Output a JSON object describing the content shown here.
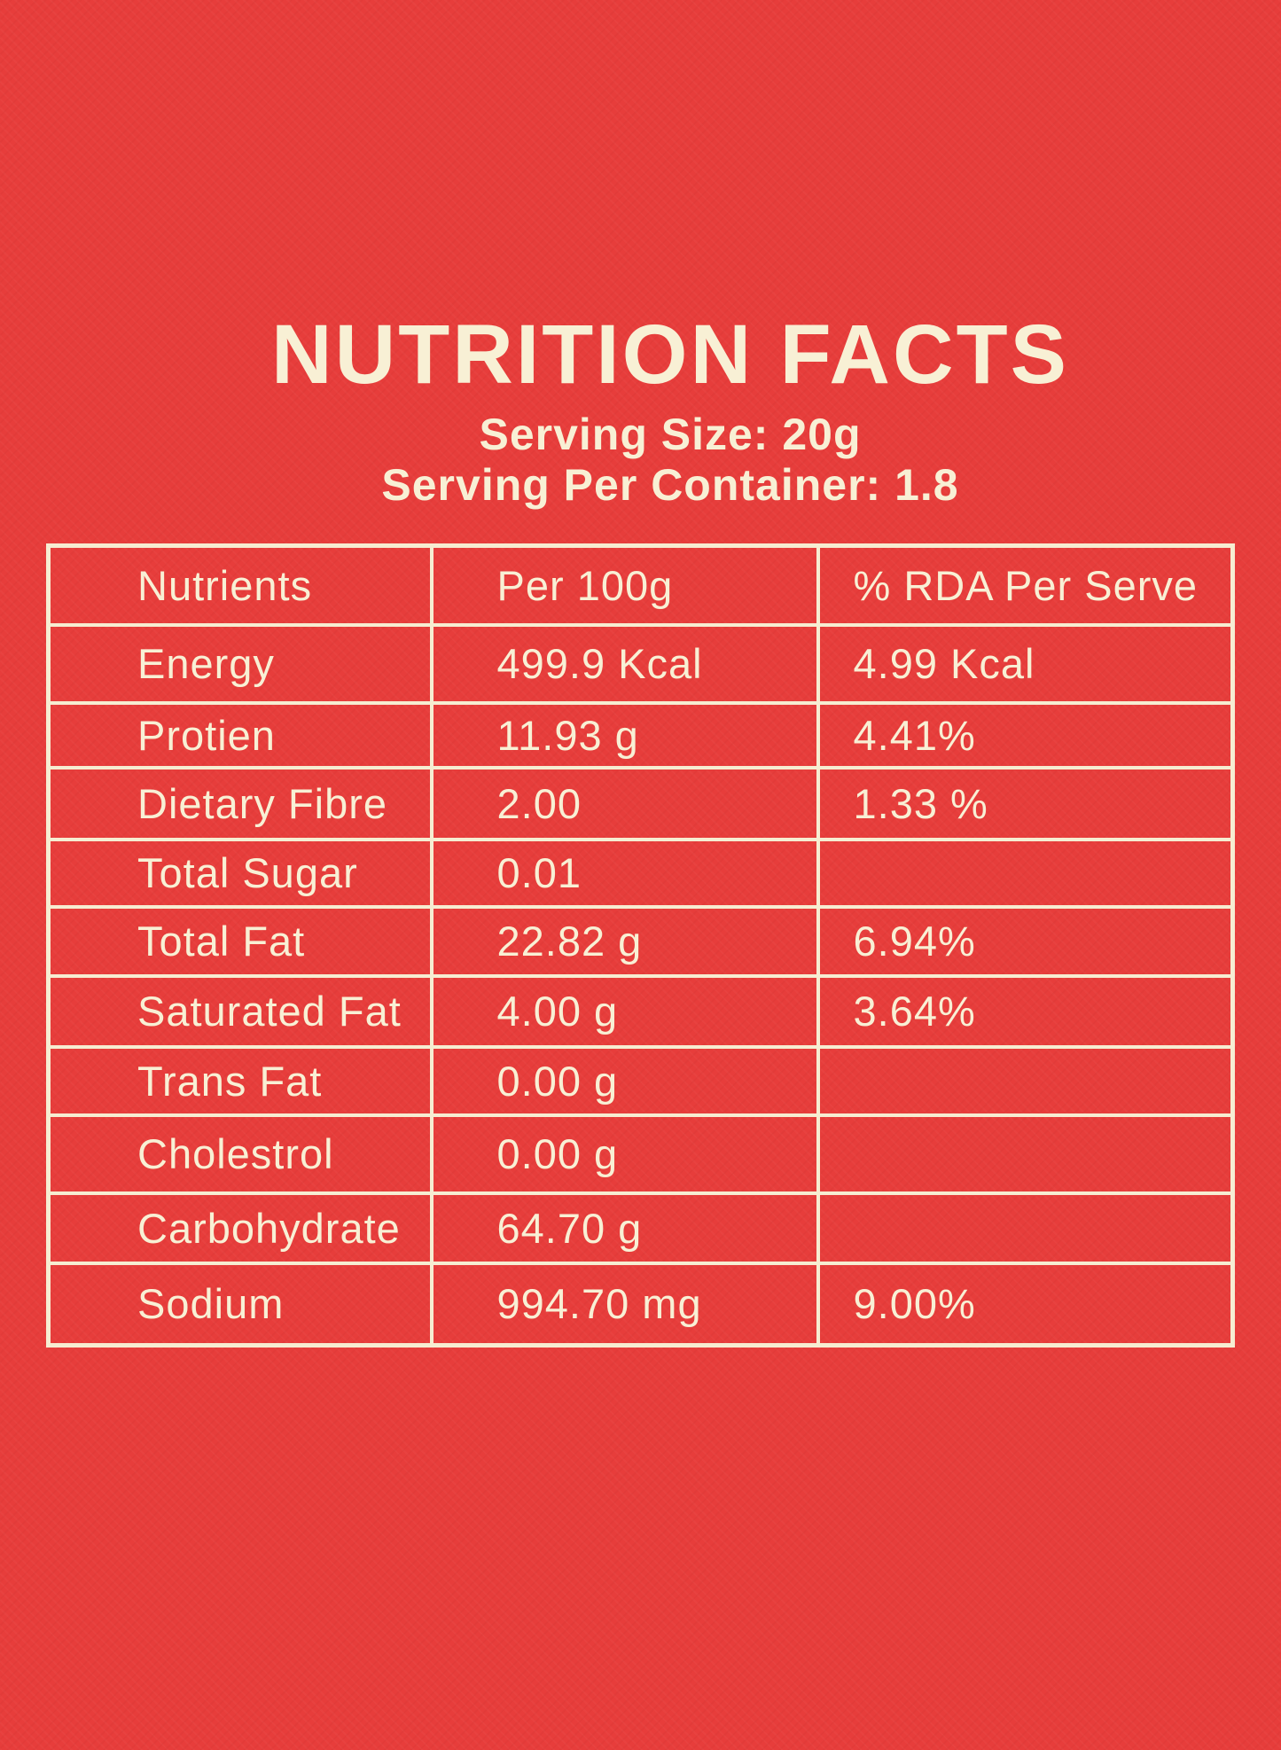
{
  "colors": {
    "background_red": "#E73D3B",
    "text_cream": "#F8F0D5",
    "border_cream": "#F6EDD2"
  },
  "header": {
    "title": "NUTRITION FACTS",
    "serving_size": "Serving Size: 20g",
    "serving_per_container": "Serving Per Container: 1.8"
  },
  "table": {
    "columns": [
      "Nutrients",
      "Per 100g",
      "% RDA Per Serve"
    ],
    "rows": [
      {
        "nutrient": "Energy",
        "per_100g": "499.9 Kcal",
        "rda_per_serve": "4.99 Kcal"
      },
      {
        "nutrient": "Protien",
        "per_100g": "11.93 g",
        "rda_per_serve": "4.41%"
      },
      {
        "nutrient": "Dietary Fibre",
        "per_100g": "2.00",
        "rda_per_serve": "1.33 %"
      },
      {
        "nutrient": "Total Sugar",
        "per_100g": "0.01",
        "rda_per_serve": ""
      },
      {
        "nutrient": "Total Fat",
        "per_100g": "22.82 g",
        "rda_per_serve": "6.94%"
      },
      {
        "nutrient": "Saturated Fat",
        "per_100g": "4.00 g",
        "rda_per_serve": "3.64%"
      },
      {
        "nutrient": "Trans Fat",
        "per_100g": "0.00 g",
        "rda_per_serve": ""
      },
      {
        "nutrient": "Cholestrol",
        "per_100g": "0.00 g",
        "rda_per_serve": ""
      },
      {
        "nutrient": "Carbohydrate",
        "per_100g": "64.70 g",
        "rda_per_serve": ""
      },
      {
        "nutrient": "Sodium",
        "per_100g": "994.70 mg",
        "rda_per_serve": "9.00%"
      }
    ]
  }
}
